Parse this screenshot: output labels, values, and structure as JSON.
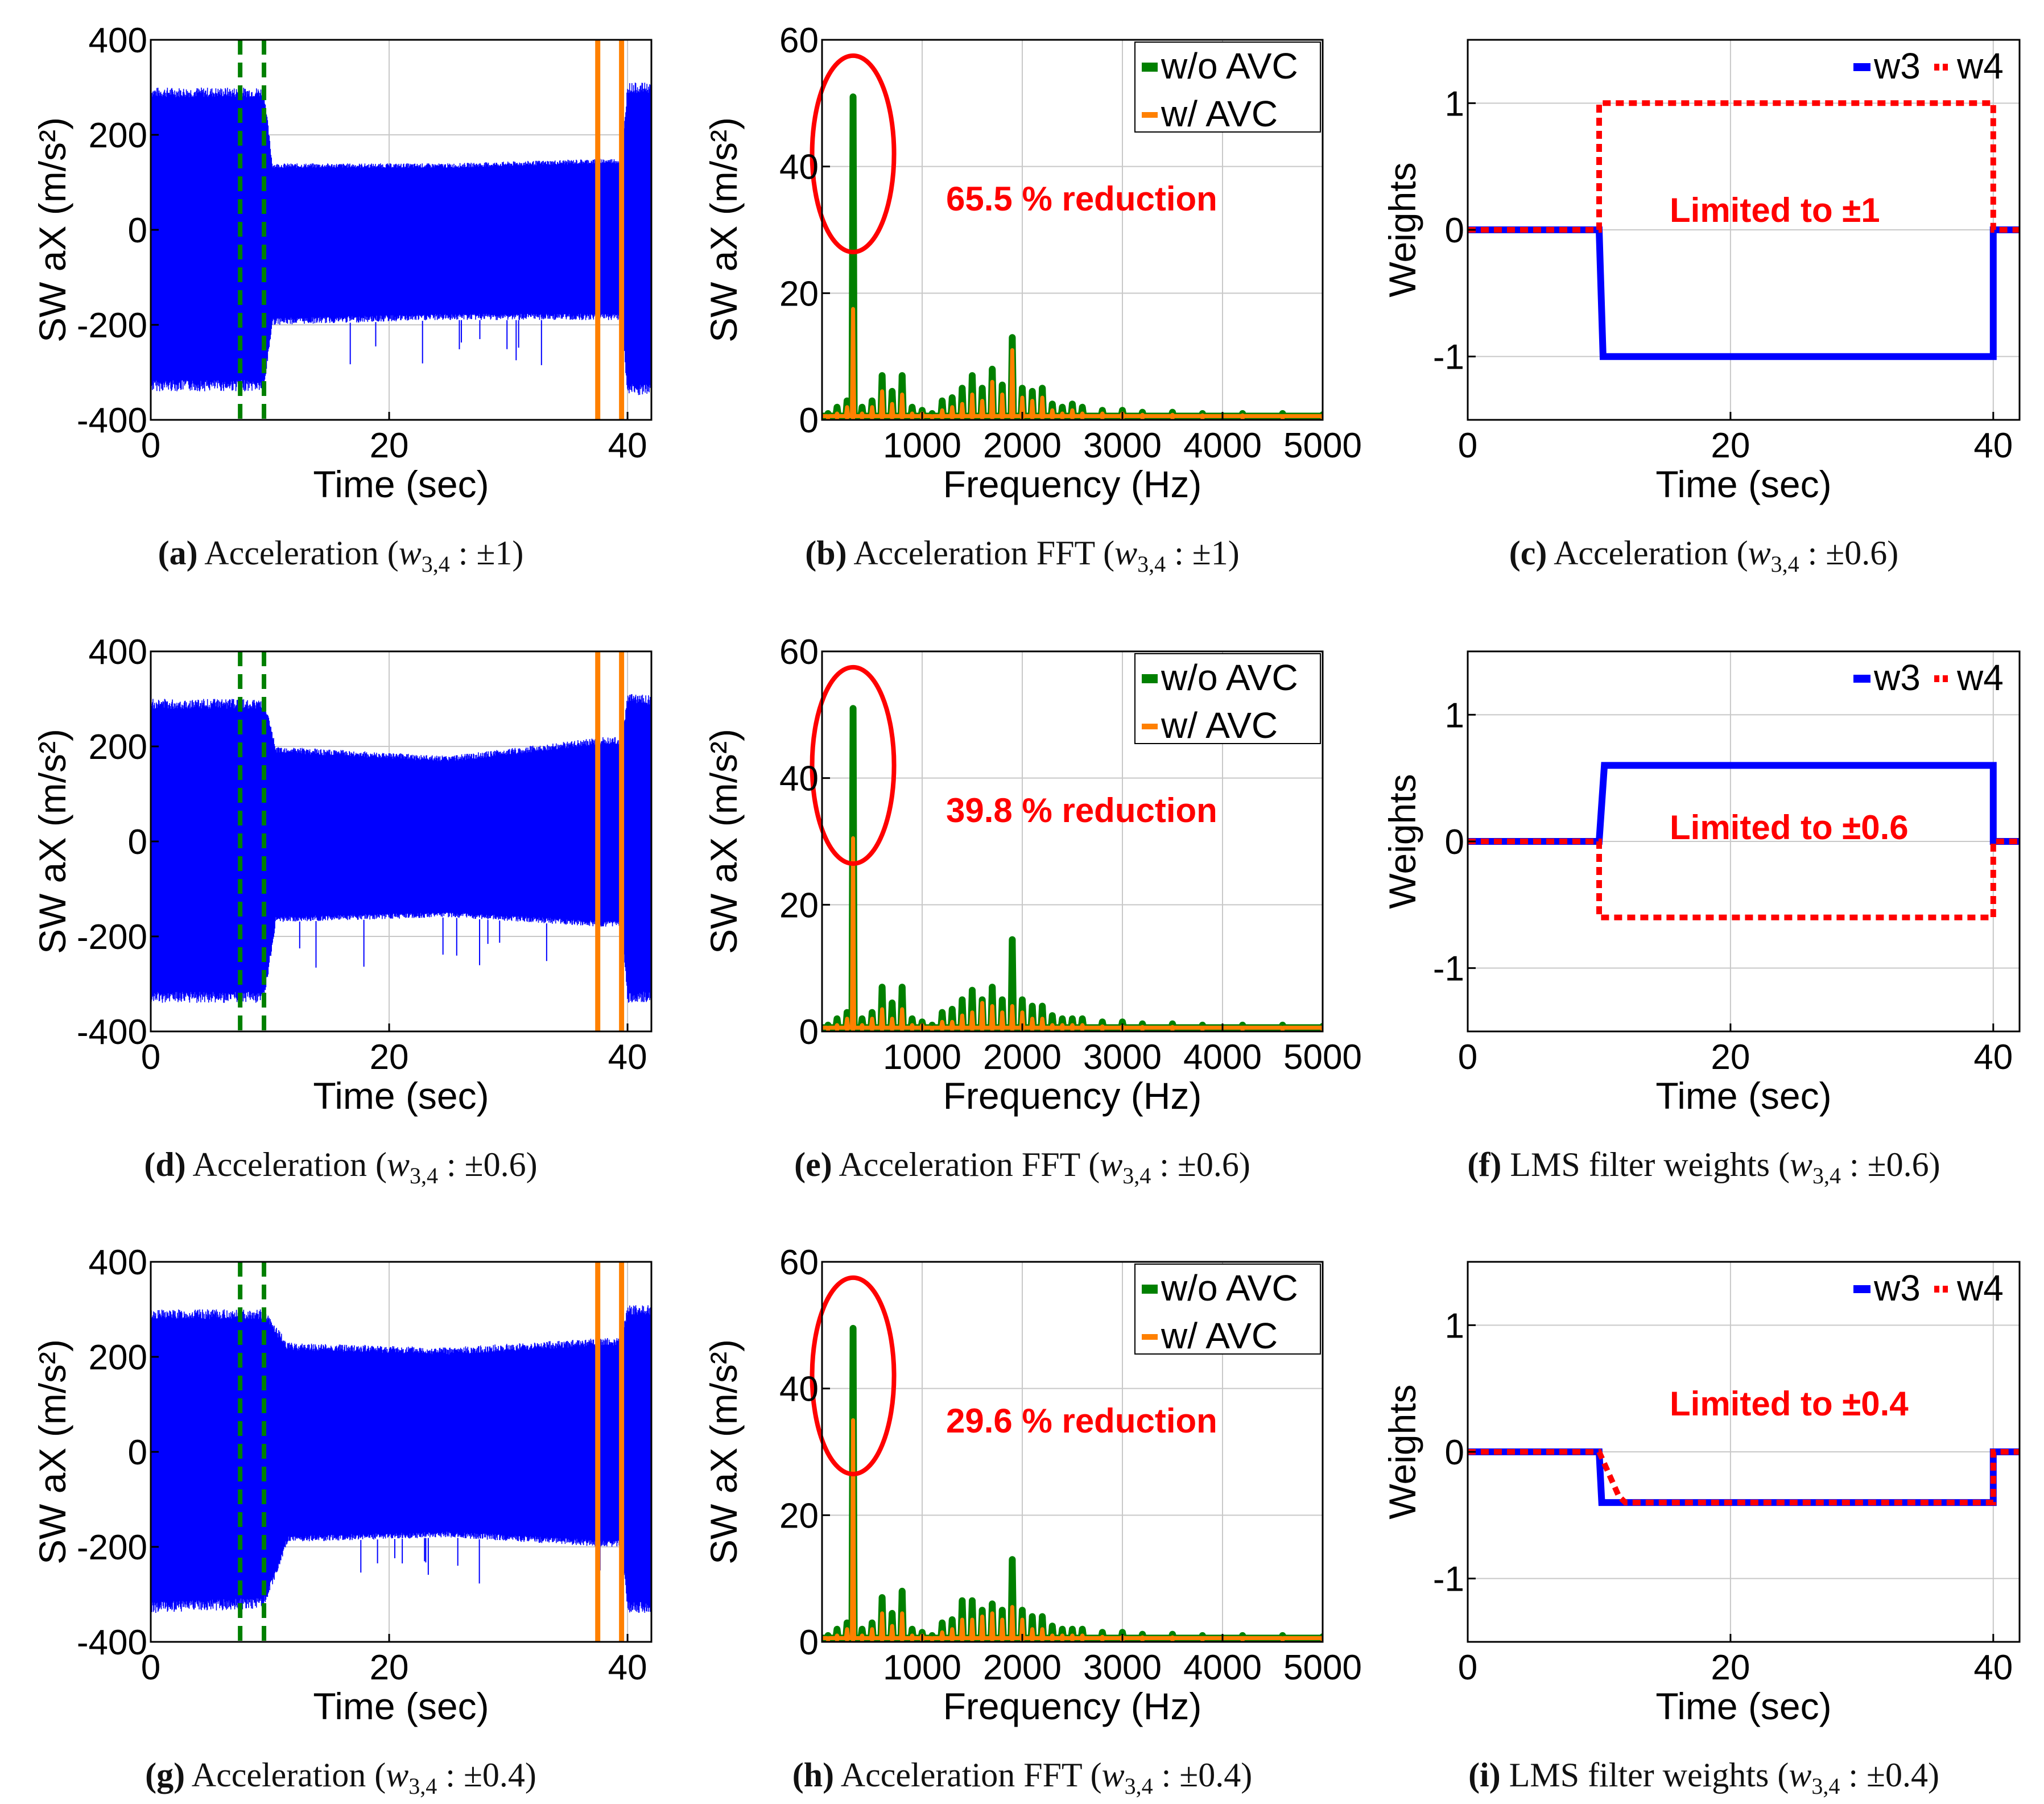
{
  "colors": {
    "raw": "#0000ff",
    "wo_avc": "#008000",
    "w_avc": "#ff8000",
    "annotation": "#ff0000",
    "w3": "#0000ff",
    "w4": "#ff0000",
    "grid": "#c8c8c8",
    "axis": "#000000"
  },
  "panels": [
    {
      "id": "a",
      "type": "time",
      "letter": "(a)",
      "caption": "Acceleration",
      "limit": "±1",
      "xlabel": "Time (sec)",
      "ylabel": "SW aX (m/s²)",
      "xlim": [
        0,
        42
      ],
      "ylim": [
        -400,
        400
      ],
      "xticks": [
        "0",
        "20",
        "40"
      ],
      "yticks": [
        "400",
        "200",
        "0",
        "-200",
        "-400"
      ],
      "green_markers_sec": [
        7.5,
        9.5
      ],
      "orange_markers_sec": [
        37.5,
        39.5
      ],
      "envelope": [
        [
          0,
          300,
          -340
        ],
        [
          9.5,
          300,
          -340
        ],
        [
          10.2,
          140,
          -200
        ],
        [
          25,
          140,
          -190
        ],
        [
          38,
          150,
          -190
        ],
        [
          39.5,
          150,
          -190
        ],
        [
          40,
          310,
          -350
        ],
        [
          42,
          310,
          -350
        ]
      ]
    },
    {
      "id": "b",
      "type": "fft",
      "letter": "(b)",
      "caption": "Acceleration FFT",
      "limit": "±1",
      "xlabel": "Frequency (Hz)",
      "ylabel": "SW aX (m/s²)",
      "xlim": [
        0,
        5000
      ],
      "ylim": [
        0,
        60
      ],
      "xticks": [
        "1000",
        "2000",
        "3000",
        "4000",
        "5000"
      ],
      "yticks": [
        "60",
        "40",
        "20",
        "0"
      ],
      "legend": [
        "w/o AVC",
        "w/ AVC"
      ],
      "annotation": "65.5 % reduction",
      "wo_avc": [
        [
          60,
          1.0
        ],
        [
          150,
          2.0
        ],
        [
          250,
          3.0
        ],
        [
          310,
          51.0
        ],
        [
          400,
          2.0
        ],
        [
          500,
          3.0
        ],
        [
          600,
          7.0
        ],
        [
          700,
          4.5
        ],
        [
          800,
          7.0
        ],
        [
          900,
          2.0
        ],
        [
          1000,
          1.5
        ],
        [
          1100,
          1.0
        ],
        [
          1200,
          3.0
        ],
        [
          1300,
          3.5
        ],
        [
          1400,
          5.0
        ],
        [
          1500,
          7.0
        ],
        [
          1600,
          5.0
        ],
        [
          1700,
          8.0
        ],
        [
          1800,
          5.5
        ],
        [
          1900,
          13.0
        ],
        [
          2000,
          5.0
        ],
        [
          2100,
          4.5
        ],
        [
          2200,
          5.0
        ],
        [
          2300,
          2.5
        ],
        [
          2400,
          2.0
        ],
        [
          2500,
          2.5
        ],
        [
          2600,
          2.0
        ],
        [
          2800,
          1.5
        ],
        [
          3000,
          1.5
        ],
        [
          3200,
          1.2
        ],
        [
          3500,
          1.2
        ],
        [
          3800,
          1.0
        ],
        [
          4200,
          1.0
        ],
        [
          4600,
          1.0
        ],
        [
          5000,
          0.8
        ]
      ],
      "w_avc": [
        [
          60,
          0.5
        ],
        [
          150,
          1.0
        ],
        [
          250,
          2.0
        ],
        [
          310,
          17.5
        ],
        [
          400,
          1.0
        ],
        [
          500,
          2.0
        ],
        [
          600,
          4.5
        ],
        [
          700,
          2.5
        ],
        [
          800,
          4.0
        ],
        [
          900,
          1.0
        ],
        [
          1000,
          1.0
        ],
        [
          1100,
          0.5
        ],
        [
          1200,
          1.5
        ],
        [
          1300,
          2.0
        ],
        [
          1400,
          2.5
        ],
        [
          1500,
          4.0
        ],
        [
          1600,
          3.0
        ],
        [
          1700,
          6.0
        ],
        [
          1800,
          4.0
        ],
        [
          1900,
          11.0
        ],
        [
          2000,
          3.5
        ],
        [
          2100,
          3.0
        ],
        [
          2200,
          3.5
        ],
        [
          2300,
          1.5
        ],
        [
          2400,
          1.0
        ],
        [
          2500,
          1.5
        ],
        [
          2600,
          1.0
        ],
        [
          2800,
          1.0
        ],
        [
          3000,
          1.0
        ],
        [
          3200,
          0.8
        ],
        [
          3500,
          0.8
        ],
        [
          3800,
          0.7
        ],
        [
          4200,
          0.7
        ],
        [
          4600,
          0.6
        ],
        [
          5000,
          0.5
        ]
      ]
    },
    {
      "id": "c",
      "type": "weights",
      "letter": "(c)",
      "caption": "Acceleration",
      "limit": "±0.6",
      "xlabel": "Time (sec)",
      "ylabel": "Weights",
      "xlim": [
        0,
        42
      ],
      "ylim": [
        -1.5,
        1.5
      ],
      "xticks": [
        "0",
        "20",
        "40"
      ],
      "yticks": [
        "1",
        "0",
        "-1"
      ],
      "legend": [
        "w3",
        "w4"
      ],
      "annotation": "Limited to ±1",
      "w3": [
        [
          0,
          0
        ],
        [
          10,
          0
        ],
        [
          10.3,
          -1
        ],
        [
          40,
          -1
        ],
        [
          40,
          0
        ],
        [
          42,
          0
        ]
      ],
      "w4": [
        [
          0,
          0
        ],
        [
          10,
          0
        ],
        [
          10,
          1
        ],
        [
          40,
          1
        ],
        [
          40,
          0
        ],
        [
          42,
          0
        ]
      ]
    },
    {
      "id": "d",
      "type": "time",
      "letter": "(d)",
      "caption": "Acceleration",
      "limit": "±0.6",
      "xlabel": "Time (sec)",
      "ylabel": "SW aX (m/s²)",
      "xlim": [
        0,
        42
      ],
      "ylim": [
        -400,
        400
      ],
      "xticks": [
        "0",
        "20",
        "40"
      ],
      "yticks": [
        "400",
        "200",
        "0",
        "-200",
        "-400"
      ],
      "green_markers_sec": [
        7.5,
        9.5
      ],
      "orange_markers_sec": [
        37.5,
        39.5
      ],
      "envelope": [
        [
          0,
          300,
          -340
        ],
        [
          9.5,
          300,
          -340
        ],
        [
          10.5,
          200,
          -170
        ],
        [
          25,
          180,
          -160
        ],
        [
          38,
          220,
          -180
        ],
        [
          39.5,
          220,
          -180
        ],
        [
          40,
          310,
          -340
        ],
        [
          42,
          310,
          -340
        ]
      ]
    },
    {
      "id": "e",
      "type": "fft",
      "letter": "(e)",
      "caption": "Acceleration FFT",
      "limit": "±0.6",
      "xlabel": "Frequency (Hz)",
      "ylabel": "SW aX (m/s²)",
      "xlim": [
        0,
        5000
      ],
      "ylim": [
        0,
        60
      ],
      "xticks": [
        "1000",
        "2000",
        "3000",
        "4000",
        "5000"
      ],
      "yticks": [
        "60",
        "40",
        "20",
        "0"
      ],
      "legend": [
        "w/o AVC",
        "w/ AVC"
      ],
      "annotation": "39.8 % reduction",
      "wo_avc": [
        [
          60,
          1.0
        ],
        [
          150,
          2.0
        ],
        [
          250,
          3.0
        ],
        [
          310,
          51.0
        ],
        [
          400,
          2.0
        ],
        [
          500,
          3.0
        ],
        [
          600,
          7.0
        ],
        [
          700,
          4.5
        ],
        [
          800,
          7.0
        ],
        [
          900,
          2.0
        ],
        [
          1000,
          1.5
        ],
        [
          1100,
          1.0
        ],
        [
          1200,
          3.0
        ],
        [
          1300,
          3.5
        ],
        [
          1400,
          5.0
        ],
        [
          1500,
          6.5
        ],
        [
          1600,
          5.0
        ],
        [
          1700,
          7.0
        ],
        [
          1800,
          5.0
        ],
        [
          1900,
          14.5
        ],
        [
          2000,
          5.0
        ],
        [
          2100,
          4.0
        ],
        [
          2200,
          4.0
        ],
        [
          2300,
          2.5
        ],
        [
          2400,
          2.0
        ],
        [
          2500,
          2.0
        ],
        [
          2600,
          2.0
        ],
        [
          2800,
          1.5
        ],
        [
          3000,
          1.5
        ],
        [
          3200,
          1.2
        ],
        [
          3500,
          1.2
        ],
        [
          3800,
          1.0
        ],
        [
          4200,
          1.0
        ],
        [
          4600,
          1.0
        ],
        [
          5000,
          0.8
        ]
      ],
      "w_avc": [
        [
          60,
          0.5
        ],
        [
          150,
          1.0
        ],
        [
          250,
          2.0
        ],
        [
          310,
          30.5
        ],
        [
          400,
          1.0
        ],
        [
          500,
          2.0
        ],
        [
          600,
          3.5
        ],
        [
          700,
          2.0
        ],
        [
          800,
          3.5
        ],
        [
          900,
          1.0
        ],
        [
          1000,
          1.0
        ],
        [
          1100,
          0.5
        ],
        [
          1200,
          1.5
        ],
        [
          1300,
          1.5
        ],
        [
          1400,
          2.5
        ],
        [
          1500,
          3.0
        ],
        [
          1600,
          4.5
        ],
        [
          1700,
          4.0
        ],
        [
          1800,
          3.0
        ],
        [
          1900,
          4.0
        ],
        [
          2000,
          3.0
        ],
        [
          2100,
          2.0
        ],
        [
          2200,
          2.0
        ],
        [
          2300,
          1.0
        ],
        [
          2400,
          1.0
        ],
        [
          2500,
          1.0
        ],
        [
          2600,
          1.0
        ],
        [
          2800,
          0.8
        ],
        [
          3000,
          0.8
        ],
        [
          3200,
          0.7
        ],
        [
          3500,
          0.7
        ],
        [
          3800,
          0.6
        ],
        [
          4200,
          0.6
        ],
        [
          4600,
          0.5
        ],
        [
          5000,
          0.5
        ]
      ]
    },
    {
      "id": "f",
      "type": "weights",
      "letter": "(f)",
      "caption": "LMS filter weights",
      "limit": "±0.6",
      "xlabel": "Time (sec)",
      "ylabel": "Weights",
      "xlim": [
        0,
        42
      ],
      "ylim": [
        -1.5,
        1.5
      ],
      "xticks": [
        "0",
        "20",
        "40"
      ],
      "yticks": [
        "1",
        "0",
        "-1"
      ],
      "legend": [
        "w3",
        "w4"
      ],
      "annotation": "Limited to ±0.6",
      "w3": [
        [
          0,
          0
        ],
        [
          10,
          0
        ],
        [
          10.4,
          0.6
        ],
        [
          40,
          0.6
        ],
        [
          40,
          0
        ],
        [
          42,
          0
        ]
      ],
      "w4": [
        [
          0,
          0
        ],
        [
          10,
          0
        ],
        [
          10,
          -0.6
        ],
        [
          40,
          -0.6
        ],
        [
          40,
          0
        ],
        [
          42,
          0
        ]
      ]
    },
    {
      "id": "g",
      "type": "time",
      "letter": "(g)",
      "caption": "Acceleration",
      "limit": "±0.4",
      "xlabel": "Time (sec)",
      "ylabel": "SW aX (m/s²)",
      "xlim": [
        0,
        42
      ],
      "ylim": [
        -400,
        400
      ],
      "xticks": [
        "0",
        "20",
        "40"
      ],
      "yticks": [
        "400",
        "200",
        "0",
        "-200",
        "-400"
      ],
      "green_markers_sec": [
        7.5,
        9.5
      ],
      "orange_markers_sec": [
        37.5,
        39.5
      ],
      "envelope": [
        [
          0,
          300,
          -340
        ],
        [
          9.5,
          300,
          -330
        ],
        [
          11.5,
          230,
          -190
        ],
        [
          25,
          220,
          -180
        ],
        [
          38,
          240,
          -200
        ],
        [
          39.5,
          240,
          -200
        ],
        [
          40,
          310,
          -340
        ],
        [
          42,
          310,
          -340
        ]
      ]
    },
    {
      "id": "h",
      "type": "fft",
      "letter": "(h)",
      "caption": "Acceleration FFT",
      "limit": "±0.4",
      "xlabel": "Frequency (Hz)",
      "ylabel": "SW aX (m/s²)",
      "xlim": [
        0,
        5000
      ],
      "ylim": [
        0,
        60
      ],
      "xticks": [
        "1000",
        "2000",
        "3000",
        "4000",
        "5000"
      ],
      "yticks": [
        "60",
        "40",
        "20",
        "0"
      ],
      "legend": [
        "w/o AVC",
        "w/ AVC"
      ],
      "annotation": "29.6 % reduction",
      "wo_avc": [
        [
          60,
          1.0
        ],
        [
          150,
          2.0
        ],
        [
          250,
          3.0
        ],
        [
          310,
          49.5
        ],
        [
          400,
          2.0
        ],
        [
          500,
          3.0
        ],
        [
          600,
          7.0
        ],
        [
          700,
          4.5
        ],
        [
          800,
          8.0
        ],
        [
          900,
          2.0
        ],
        [
          1000,
          1.5
        ],
        [
          1100,
          1.0
        ],
        [
          1200,
          3.0
        ],
        [
          1300,
          3.5
        ],
        [
          1400,
          6.5
        ],
        [
          1500,
          6.5
        ],
        [
          1600,
          5.0
        ],
        [
          1700,
          6.0
        ],
        [
          1800,
          5.0
        ],
        [
          1900,
          13.0
        ],
        [
          2000,
          5.0
        ],
        [
          2100,
          4.0
        ],
        [
          2200,
          4.0
        ],
        [
          2300,
          2.5
        ],
        [
          2400,
          2.0
        ],
        [
          2500,
          2.0
        ],
        [
          2600,
          2.0
        ],
        [
          2800,
          1.5
        ],
        [
          3000,
          1.5
        ],
        [
          3200,
          1.2
        ],
        [
          3500,
          1.2
        ],
        [
          3800,
          1.0
        ],
        [
          4200,
          1.0
        ],
        [
          4600,
          1.0
        ],
        [
          5000,
          0.8
        ]
      ],
      "w_avc": [
        [
          60,
          0.5
        ],
        [
          150,
          1.0
        ],
        [
          250,
          2.0
        ],
        [
          310,
          35.0
        ],
        [
          400,
          1.0
        ],
        [
          500,
          2.0
        ],
        [
          600,
          4.5
        ],
        [
          700,
          2.5
        ],
        [
          800,
          4.5
        ],
        [
          900,
          1.0
        ],
        [
          1000,
          1.0
        ],
        [
          1100,
          0.5
        ],
        [
          1200,
          1.5
        ],
        [
          1300,
          2.0
        ],
        [
          1400,
          3.5
        ],
        [
          1500,
          3.5
        ],
        [
          1600,
          4.0
        ],
        [
          1700,
          4.5
        ],
        [
          1800,
          3.5
        ],
        [
          1900,
          5.5
        ],
        [
          2000,
          3.5
        ],
        [
          2100,
          2.0
        ],
        [
          2200,
          2.0
        ],
        [
          2300,
          1.0
        ],
        [
          2400,
          1.0
        ],
        [
          2500,
          1.0
        ],
        [
          2600,
          1.0
        ],
        [
          2800,
          0.8
        ],
        [
          3000,
          0.8
        ],
        [
          3200,
          0.7
        ],
        [
          3500,
          0.7
        ],
        [
          3800,
          0.6
        ],
        [
          4200,
          0.6
        ],
        [
          4600,
          0.5
        ],
        [
          5000,
          0.5
        ]
      ]
    },
    {
      "id": "i",
      "type": "weights",
      "letter": "(i)",
      "caption": "LMS filter weights",
      "limit": "±0.4",
      "xlabel": "Time (sec)",
      "ylabel": "Weights",
      "xlim": [
        0,
        42
      ],
      "ylim": [
        -1.5,
        1.5
      ],
      "xticks": [
        "0",
        "20",
        "40"
      ],
      "yticks": [
        "1",
        "0",
        "-1"
      ],
      "legend": [
        "w3",
        "w4"
      ],
      "annotation": "Limited to ±0.4",
      "w3": [
        [
          0,
          0
        ],
        [
          10,
          0
        ],
        [
          10.2,
          -0.4
        ],
        [
          40,
          -0.4
        ],
        [
          40,
          0
        ],
        [
          42,
          0
        ]
      ],
      "w4": [
        [
          0,
          0
        ],
        [
          10,
          0
        ],
        [
          11.5,
          -0.35
        ],
        [
          12,
          -0.4
        ],
        [
          40,
          -0.4
        ],
        [
          40,
          0
        ],
        [
          42,
          0
        ]
      ]
    }
  ]
}
